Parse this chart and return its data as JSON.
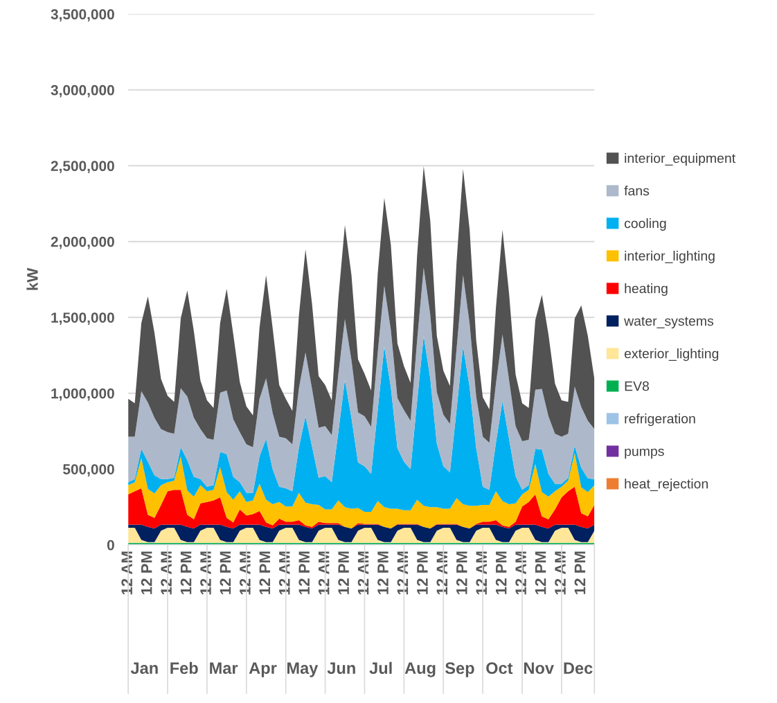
{
  "chart_data": {
    "type": "area",
    "stacked": true,
    "ylabel": "kW",
    "categories": [
      "12 AM",
      null,
      null,
      "12 PM",
      null,
      null,
      "12 AM",
      null,
      null,
      "12 PM",
      null,
      null,
      "12 AM",
      null,
      null,
      "12 PM",
      null,
      null,
      "12 AM",
      null,
      null,
      "12 PM",
      null,
      null,
      "12 AM",
      null,
      null,
      "12 PM",
      null,
      null,
      "12 AM",
      null,
      null,
      "12 PM",
      null,
      null,
      "12 AM",
      null,
      null,
      "12 PM",
      null,
      null,
      "12 AM",
      null,
      null,
      "12 PM",
      null,
      null,
      "12 AM",
      null,
      null,
      "12 PM",
      null,
      null,
      "12 AM",
      null,
      null,
      "12 PM",
      null,
      null,
      "12 AM",
      null,
      null,
      "12 PM",
      null,
      null,
      "12 AM",
      null,
      null,
      "12 PM",
      null,
      null
    ],
    "annotations": [
      "Jan",
      "Feb",
      "Mar",
      "Apr",
      "May",
      "Jun",
      "Jul",
      "Aug",
      "Sep",
      "Oct",
      "Nov",
      "Dec"
    ],
    "ylim": [
      0,
      3500000
    ],
    "yticks": [
      0,
      {
        "value": 500000,
        "label": "500,000"
      },
      {
        "value": 1000000,
        "label": "1,000,000"
      },
      {
        "value": 1500000,
        "label": "1,500,000"
      },
      {
        "value": 2000000,
        "label": "2,000,000"
      },
      {
        "value": 2500000,
        "label": "2,500,000"
      },
      {
        "value": 3000000,
        "label": "3,000,000"
      },
      {
        "value": 3500000,
        "label": "3,500,000"
      }
    ],
    "grid": "y",
    "legend": "right",
    "series": [
      {
        "name": "heat_rejection",
        "color": "#ed7d31",
        "values": [
          null,
          null,
          null,
          null,
          null,
          null,
          null,
          null,
          null,
          null,
          null,
          null,
          null,
          null,
          null,
          null,
          null,
          null,
          null,
          null,
          null,
          null,
          null,
          null,
          null,
          null,
          null,
          null,
          null,
          null,
          null,
          null,
          null,
          null,
          null,
          null,
          null,
          null,
          null,
          null,
          null,
          null,
          null,
          null,
          null,
          null,
          null,
          null,
          null,
          null,
          null,
          null,
          null,
          null,
          null,
          null,
          null,
          null,
          null,
          null,
          null,
          null,
          null,
          null,
          null,
          null,
          null,
          null,
          null,
          null,
          null,
          null
        ]
      },
      {
        "name": "pumps",
        "color": "#7030a0",
        "values": [
          null,
          null,
          null,
          null,
          null,
          null,
          null,
          null,
          null,
          null,
          null,
          null,
          null,
          null,
          null,
          null,
          null,
          null,
          null,
          null,
          null,
          null,
          null,
          null,
          null,
          null,
          null,
          null,
          null,
          null,
          null,
          null,
          null,
          null,
          null,
          null,
          null,
          null,
          null,
          null,
          null,
          null,
          null,
          null,
          null,
          null,
          null,
          null,
          null,
          null,
          null,
          null,
          null,
          null,
          null,
          null,
          null,
          null,
          null,
          null,
          null,
          null,
          null,
          null,
          null,
          null,
          null,
          null,
          null,
          null,
          null,
          null
        ]
      },
      {
        "name": "refrigeration",
        "color": "#9dc3e6",
        "values": [
          5000,
          5000,
          5000,
          5000,
          5000,
          5000,
          5000,
          5000,
          5000,
          5000,
          5000,
          5000,
          5000,
          5000,
          5000,
          5000,
          5000,
          5000,
          5000,
          5000,
          5000,
          5000,
          5000,
          5000,
          5000,
          5000,
          5000,
          5000,
          5000,
          5000,
          5000,
          5000,
          5000,
          5000,
          5000,
          5000,
          5000,
          5000,
          5000,
          5000,
          5000,
          5000,
          5000,
          5000,
          5000,
          5000,
          5000,
          5000,
          5000,
          5000,
          5000,
          5000,
          5000,
          5000,
          5000,
          5000,
          5000,
          5000,
          5000,
          5000,
          5000,
          5000,
          5000,
          5000,
          5000,
          5000,
          5000,
          5000,
          5000,
          5000,
          5000,
          5000
        ]
      },
      {
        "name": "EV8",
        "color": "#00b050",
        "values": [
          8000,
          8000,
          8000,
          8000,
          8000,
          8000,
          8000,
          8000,
          8000,
          8000,
          8000,
          8000,
          8000,
          8000,
          8000,
          8000,
          8000,
          8000,
          8000,
          8000,
          8000,
          8000,
          8000,
          8000,
          8000,
          8000,
          8000,
          8000,
          8000,
          8000,
          8000,
          8000,
          8000,
          8000,
          8000,
          8000,
          8000,
          8000,
          8000,
          8000,
          8000,
          8000,
          8000,
          8000,
          8000,
          8000,
          8000,
          8000,
          8000,
          8000,
          8000,
          8000,
          8000,
          8000,
          8000,
          8000,
          8000,
          8000,
          8000,
          8000,
          8000,
          8000,
          8000,
          8000,
          8000,
          8000,
          8000,
          8000,
          8000,
          8000,
          8000,
          8000
        ]
      },
      {
        "name": "exterior_lighting",
        "color": "#ffe699",
        "values": [
          100000,
          100000,
          20000,
          5000,
          5000,
          80000,
          100000,
          100000,
          20000,
          5000,
          5000,
          80000,
          100000,
          100000,
          20000,
          5000,
          5000,
          80000,
          100000,
          100000,
          20000,
          5000,
          5000,
          80000,
          100000,
          100000,
          20000,
          5000,
          5000,
          80000,
          100000,
          100000,
          20000,
          5000,
          5000,
          80000,
          100000,
          100000,
          20000,
          5000,
          5000,
          80000,
          100000,
          100000,
          20000,
          5000,
          5000,
          80000,
          100000,
          100000,
          20000,
          5000,
          5000,
          80000,
          100000,
          100000,
          20000,
          5000,
          5000,
          80000,
          100000,
          100000,
          20000,
          5000,
          5000,
          80000,
          100000,
          100000,
          20000,
          5000,
          5000,
          80000
        ]
      },
      {
        "name": "water_systems",
        "color": "#002060",
        "values": [
          20000,
          20000,
          100000,
          100000,
          90000,
          40000,
          20000,
          20000,
          100000,
          100000,
          90000,
          40000,
          20000,
          20000,
          100000,
          100000,
          90000,
          40000,
          20000,
          20000,
          100000,
          100000,
          90000,
          40000,
          20000,
          20000,
          100000,
          100000,
          90000,
          40000,
          20000,
          20000,
          100000,
          100000,
          90000,
          40000,
          20000,
          20000,
          100000,
          100000,
          90000,
          40000,
          20000,
          20000,
          100000,
          100000,
          90000,
          40000,
          20000,
          20000,
          100000,
          100000,
          90000,
          40000,
          20000,
          20000,
          100000,
          100000,
          90000,
          40000,
          20000,
          20000,
          100000,
          100000,
          90000,
          40000,
          20000,
          20000,
          100000,
          100000,
          90000,
          40000
        ]
      },
      {
        "name": "heating",
        "color": "#ff0000",
        "values": [
          200000,
          220000,
          240000,
          80000,
          70000,
          130000,
          220000,
          230000,
          230000,
          80000,
          60000,
          140000,
          150000,
          160000,
          180000,
          60000,
          40000,
          100000,
          60000,
          70000,
          90000,
          30000,
          20000,
          40000,
          20000,
          20000,
          30000,
          10000,
          10000,
          20000,
          10000,
          10000,
          10000,
          0,
          0,
          10000,
          5000,
          5000,
          5000,
          0,
          0,
          5000,
          5000,
          5000,
          5000,
          0,
          0,
          5000,
          5000,
          5000,
          5000,
          0,
          0,
          5000,
          20000,
          20000,
          30000,
          10000,
          10000,
          20000,
          120000,
          150000,
          200000,
          70000,
          60000,
          100000,
          180000,
          220000,
          250000,
          90000,
          80000,
          130000
        ]
      },
      {
        "name": "interior_lighting",
        "color": "#ffc000",
        "values": [
          60000,
          60000,
          200000,
          170000,
          160000,
          130000,
          60000,
          60000,
          220000,
          160000,
          150000,
          120000,
          70000,
          70000,
          200000,
          170000,
          150000,
          120000,
          90000,
          90000,
          180000,
          150000,
          140000,
          110000,
          100000,
          100000,
          180000,
          150000,
          150000,
          110000,
          90000,
          90000,
          150000,
          130000,
          130000,
          100000,
          80000,
          80000,
          150000,
          130000,
          130000,
          100000,
          90000,
          90000,
          160000,
          140000,
          140000,
          110000,
          100000,
          100000,
          170000,
          150000,
          150000,
          120000,
          110000,
          110000,
          190000,
          160000,
          150000,
          120000,
          80000,
          80000,
          200000,
          160000,
          150000,
          120000,
          70000,
          70000,
          220000,
          170000,
          160000,
          130000
        ]
      },
      {
        "name": "cooling",
        "color": "#00b0f0",
        "values": [
          20000,
          20000,
          60000,
          180000,
          120000,
          40000,
          20000,
          20000,
          60000,
          200000,
          130000,
          40000,
          30000,
          30000,
          100000,
          250000,
          150000,
          60000,
          60000,
          50000,
          180000,
          400000,
          230000,
          100000,
          120000,
          100000,
          300000,
          570000,
          380000,
          180000,
          220000,
          180000,
          450000,
          840000,
          600000,
          300000,
          300000,
          250000,
          600000,
          1060000,
          800000,
          400000,
          320000,
          270000,
          650000,
          1120000,
          850000,
          420000,
          280000,
          240000,
          580000,
          1040000,
          780000,
          380000,
          120000,
          100000,
          320000,
          660000,
          430000,
          180000,
          30000,
          30000,
          100000,
          280000,
          150000,
          50000,
          20000,
          20000,
          50000,
          130000,
          90000,
          40000
        ]
      },
      {
        "name": "fans",
        "color": "#adb9ca",
        "values": [
          300000,
          280000,
          380000,
          390000,
          380000,
          330000,
          310000,
          290000,
          390000,
          420000,
          390000,
          330000,
          320000,
          300000,
          390000,
          420000,
          380000,
          330000,
          320000,
          300000,
          380000,
          400000,
          370000,
          330000,
          330000,
          310000,
          390000,
          420000,
          380000,
          330000,
          330000,
          310000,
          380000,
          400000,
          380000,
          330000,
          330000,
          310000,
          380000,
          400000,
          380000,
          330000,
          340000,
          320000,
          400000,
          450000,
          420000,
          340000,
          340000,
          320000,
          400000,
          470000,
          420000,
          340000,
          330000,
          310000,
          390000,
          440000,
          390000,
          330000,
          320000,
          300000,
          390000,
          400000,
          380000,
          330000,
          310000,
          290000,
          390000,
          400000,
          380000,
          330000
        ]
      },
      {
        "name": "interior_equipment",
        "color": "#525252",
        "values": [
          250000,
          220000,
          450000,
          700000,
          560000,
          330000,
          240000,
          210000,
          460000,
          700000,
          570000,
          320000,
          250000,
          210000,
          460000,
          670000,
          560000,
          330000,
          250000,
          210000,
          470000,
          680000,
          560000,
          340000,
          260000,
          220000,
          480000,
          680000,
          560000,
          340000,
          270000,
          230000,
          500000,
          620000,
          560000,
          350000,
          280000,
          240000,
          520000,
          580000,
          560000,
          360000,
          290000,
          250000,
          560000,
          670000,
          620000,
          370000,
          290000,
          250000,
          570000,
          700000,
          620000,
          370000,
          260000,
          220000,
          500000,
          690000,
          570000,
          340000,
          250000,
          210000,
          460000,
          620000,
          540000,
          330000,
          240000,
          210000,
          450000,
          670000,
          560000,
          330000
        ]
      }
    ]
  }
}
